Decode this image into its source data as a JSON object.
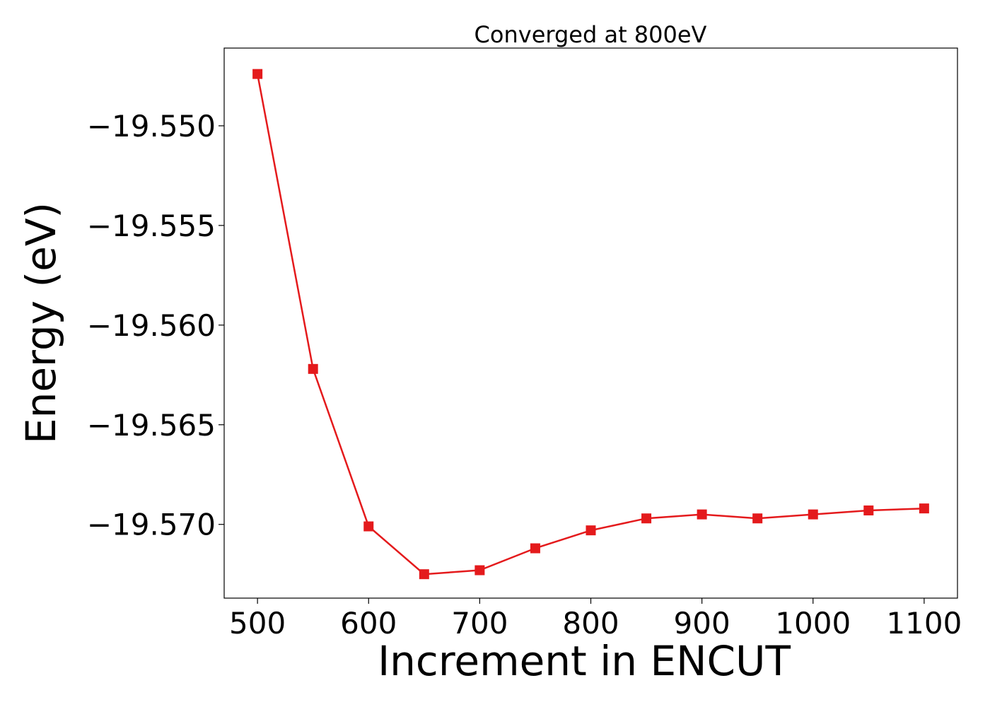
{
  "chart_data": {
    "type": "line",
    "title": "Converged at 800eV",
    "xlabel": "Increment in ENCUT",
    "ylabel": "Energy (eV)",
    "x": [
      500,
      550,
      600,
      650,
      700,
      750,
      800,
      850,
      900,
      950,
      1000,
      1050,
      1100
    ],
    "series": [
      {
        "values": [
          -19.5474,
          -19.5622,
          -19.5701,
          -19.5725,
          -19.5723,
          -19.5712,
          -19.5703,
          -19.5697,
          -19.5695,
          -19.5697,
          -19.5695,
          -19.5693,
          -19.5692
        ],
        "color": "#e41a1c",
        "marker": "square"
      }
    ],
    "xticks": [
      500,
      600,
      700,
      800,
      900,
      1000,
      1100
    ],
    "xtick_labels": [
      "500",
      "600",
      "700",
      "800",
      "900",
      "1000",
      "1100"
    ],
    "yticks": [
      -19.55,
      -19.555,
      -19.56,
      -19.565,
      -19.57
    ],
    "ytick_labels": [
      "−19.550",
      "−19.555",
      "−19.560",
      "−19.565",
      "−19.570"
    ],
    "xlim": [
      470,
      1130
    ],
    "ylim": [
      -19.5737,
      -19.5461
    ],
    "grid": false,
    "legend": "none"
  }
}
